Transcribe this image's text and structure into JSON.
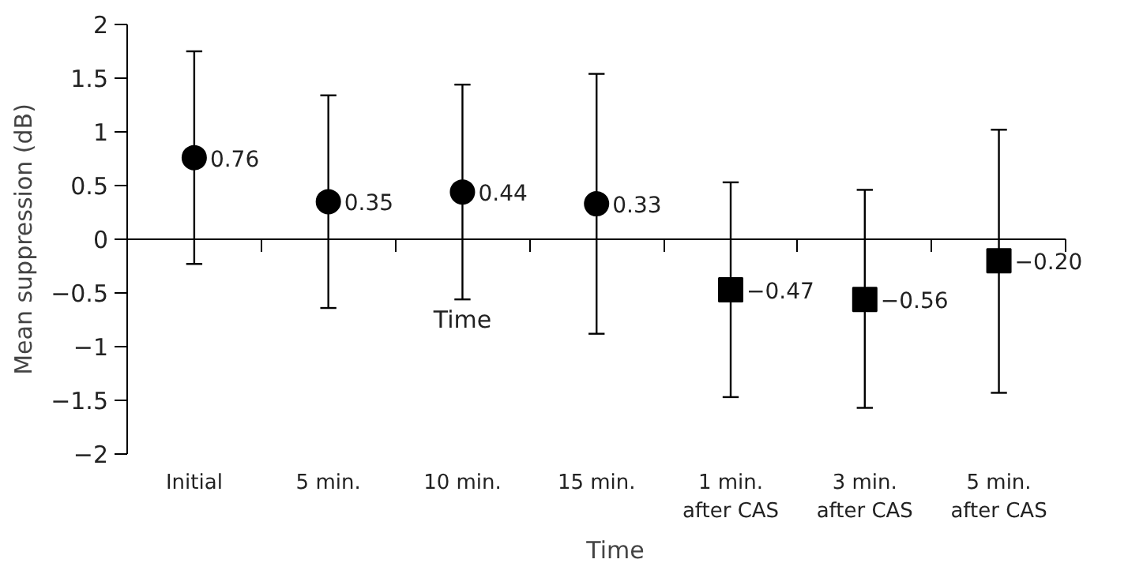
{
  "chart_data": {
    "type": "scatter",
    "xlabel": "Time",
    "ylabel": "Mean suppression (dB)",
    "categories": [
      "Initial",
      "5 min.",
      "10 min.",
      "15 min.",
      "1 min.\nafter CAS",
      "3 min.\nafter CAS",
      "5 min.\nafter CAS"
    ],
    "series": [
      {
        "color": "#000000",
        "marker": "circle",
        "values": [
          0.76,
          0.35,
          0.44,
          0.33,
          null,
          null,
          null
        ],
        "value_labels": [
          "0.76",
          "0.35",
          "0.44",
          "0.33",
          null,
          null,
          null
        ],
        "errors": [
          [
            -0.23,
            1.75
          ],
          [
            -0.64,
            1.34
          ],
          [
            -0.56,
            1.44
          ],
          [
            -0.88,
            1.54
          ],
          null,
          null,
          null
        ]
      },
      {
        "color": "#000000",
        "marker": "square",
        "values": [
          null,
          null,
          null,
          null,
          -0.47,
          -0.56,
          -0.2
        ],
        "value_labels": [
          null,
          null,
          null,
          null,
          "−0.47",
          "−0.56",
          "−0.20"
        ],
        "errors": [
          null,
          null,
          null,
          null,
          [
            -1.47,
            0.53
          ],
          [
            -1.57,
            0.46
          ],
          [
            -1.43,
            1.02
          ]
        ]
      }
    ],
    "ylim": [
      -2,
      2
    ],
    "yticks": [
      {
        "value": 2,
        "label": "2"
      },
      {
        "value": 1.5,
        "label": "1.5"
      },
      {
        "value": 1,
        "label": "1"
      },
      {
        "value": 0.5,
        "label": "0.5"
      },
      {
        "value": 0,
        "label": "0"
      },
      {
        "value": -0.5,
        "label": "−0.5"
      },
      {
        "value": -1,
        "label": "−1"
      },
      {
        "value": -1.5,
        "label": "−1.5"
      },
      {
        "value": -2,
        "label": "−2"
      }
    ],
    "annotations": [
      "Time"
    ]
  }
}
